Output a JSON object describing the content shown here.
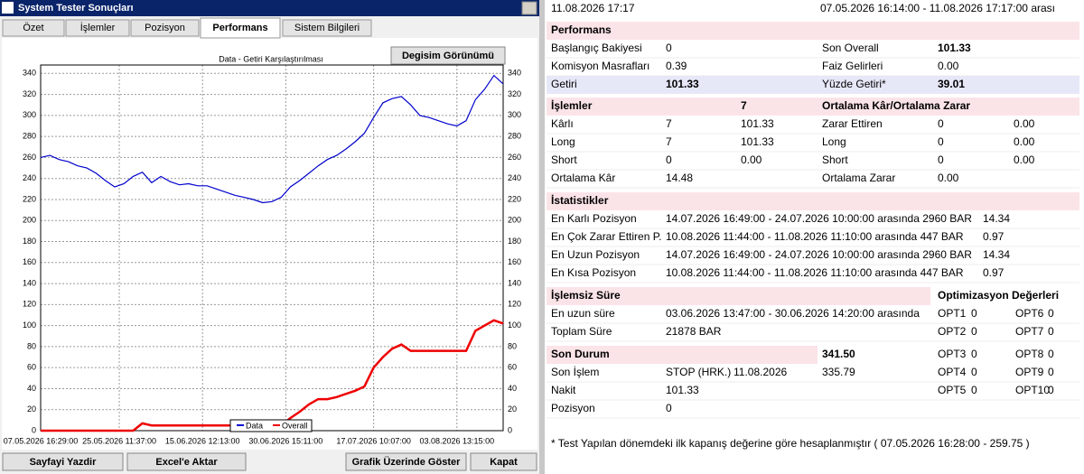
{
  "window": {
    "title": "System Tester Sonuçları",
    "tabs": [
      "Özet",
      "İşlemler",
      "Pozisyon",
      "Performans",
      "Sistem Bilgileri"
    ],
    "buttons": [
      "Sayfayi Yazdir",
      "Excel'e Aktar",
      "Grafik Üzerinde Göster",
      "Kapat"
    ]
  },
  "chart_data": {
    "type": "line",
    "title": "Data - Getiri Karşılaştırılması",
    "view_button": "Degisim Görünümü",
    "x": [
      0,
      2,
      4,
      6,
      8,
      10,
      12,
      14,
      16,
      18,
      20,
      22,
      24,
      26,
      28,
      30,
      32,
      34,
      36,
      38,
      40,
      42,
      44,
      46,
      48,
      50,
      52,
      54,
      56,
      58,
      60,
      62,
      64,
      66,
      68,
      70,
      72,
      74,
      76,
      78,
      80,
      82,
      84,
      86,
      88,
      90,
      92,
      94,
      96,
      98,
      100
    ],
    "xlim": [
      0,
      100
    ],
    "xticks": [
      {
        "value": 0,
        "label": "07.05.2026 16:29:00"
      },
      {
        "value": 17,
        "label": "25.05.2026 11:37:00"
      },
      {
        "value": 35,
        "label": "15.06.2026 12:13:00"
      },
      {
        "value": 53,
        "label": "30.06.2026 15:11:00"
      },
      {
        "value": 72,
        "label": "17.07.2026 10:07:00"
      },
      {
        "value": 90,
        "label": "03.08.2026 13:15:00"
      }
    ],
    "ylim": [
      0,
      348
    ],
    "yticks": [
      0,
      20,
      40,
      60,
      80,
      100,
      120,
      140,
      160,
      180,
      200,
      220,
      240,
      260,
      280,
      300,
      320,
      340
    ],
    "grid": true,
    "legend": "bottom",
    "series": [
      {
        "name": "Data",
        "color": "#0000cc",
        "values": [
          260,
          262,
          258,
          256,
          252,
          250,
          245,
          238,
          232,
          235,
          242,
          246,
          236,
          242,
          237,
          234,
          235,
          233,
          233,
          230,
          227,
          224,
          222,
          220,
          217,
          218,
          222,
          232,
          238,
          245,
          252,
          258,
          262,
          268,
          275,
          283,
          298,
          312,
          316,
          318,
          310,
          300,
          298,
          295,
          292,
          290,
          295,
          315,
          325,
          338,
          330
        ]
      },
      {
        "name": "Overall",
        "color": "#ee0000",
        "values": [
          0,
          0,
          0,
          0,
          0,
          0,
          0,
          0,
          0,
          0,
          0,
          7,
          5,
          5,
          5,
          5,
          5,
          5,
          5,
          5,
          5,
          5,
          5,
          5,
          5,
          5,
          5,
          12,
          18,
          25,
          30,
          30,
          32,
          35,
          38,
          42,
          60,
          70,
          78,
          82,
          76,
          76,
          76,
          76,
          76,
          76,
          76,
          95,
          100,
          105,
          102
        ]
      }
    ]
  },
  "report": {
    "rows": [
      [
        "11.08.2026 17:17",
        "07.05.2026 16:14:00 - 11.08.2026 17:17:00 arası"
      ],
      [
        "Performans"
      ],
      [
        "Başlangıç Bakiyesi",
        "0",
        "Son Overall",
        "101.33"
      ],
      [
        "Komisyon Masrafları",
        "0.39",
        "Faiz Gelirleri",
        "0.00"
      ],
      [
        "Getiri",
        "101.33",
        "Yüzde Getiri*",
        "39.01"
      ],
      [
        "İşlemler",
        "7",
        "Ortalama Kâr/Ortalama Zarar"
      ],
      [
        "Kârlı",
        "7",
        "101.33",
        "Zarar Ettiren",
        "0",
        "0.00"
      ],
      [
        "Long",
        "7",
        "101.33",
        "Long",
        "0",
        "0.00"
      ],
      [
        "Short",
        "0",
        "0.00",
        "Short",
        "0",
        "0.00"
      ],
      [
        "Ortalama Kâr",
        "14.48",
        "Ortalama Zarar",
        "0.00"
      ],
      [
        "İstatistikler"
      ],
      [
        "En Karlı Pozisyon",
        "14.07.2026 16:49:00 - 24.07.2026 10:00:00 arasında 2960 BAR",
        "14.34"
      ],
      [
        "En Çok Zarar Ettiren P.",
        "10.08.2026 11:44:00 - 11.08.2026 11:10:00 arasında 447 BAR",
        "0.97"
      ],
      [
        "En Uzun Pozisyon",
        "14.07.2026 16:49:00 - 24.07.2026 10:00:00 arasında 2960 BAR",
        "14.34"
      ],
      [
        "En Kısa Pozisyon",
        "10.08.2026 11:44:00 - 11.08.2026 11:10:00 arasında 447 BAR",
        "0.97"
      ],
      [
        "İşlemsiz Süre",
        "Optimizasyon Değerleri"
      ],
      [
        "En uzun süre",
        "03.06.2026 13:47:00 - 30.06.2026 14:20:00 arasında",
        "OPT1",
        "0",
        "OPT6",
        "0"
      ],
      [
        "Toplam Süre",
        "21878 BAR",
        "OPT2",
        "0",
        "OPT7",
        "0"
      ],
      [
        "Son Durum",
        "341.50",
        "OPT3",
        "0",
        "OPT8",
        "0"
      ],
      [
        "Son İşlem",
        "STOP (HRK.)",
        "11.08.2026",
        "335.79",
        "OPT4",
        "0",
        "OPT9",
        "0"
      ],
      [
        "Nakit",
        "101.33",
        "OPT5",
        "0",
        "OPT10",
        "0"
      ],
      [
        "Pozisyon",
        "0"
      ],
      [
        "* Test Yapılan dönemdeki ilk kapanış değerine göre hesaplanmıştır ( 07.05.2026 16:28:00 - 259.75 )"
      ]
    ]
  }
}
